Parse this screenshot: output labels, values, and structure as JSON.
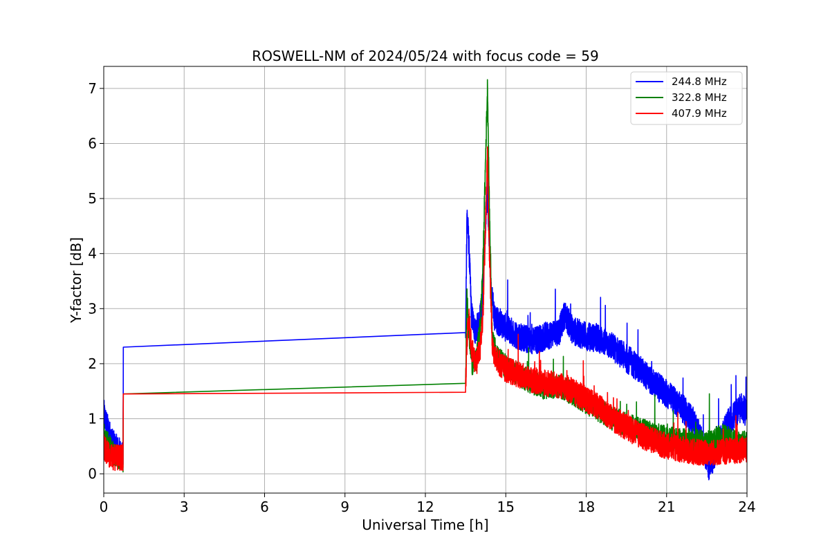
{
  "chart_data": {
    "type": "line",
    "title": "ROSWELL-NM of 2024/05/24 with focus code = 59",
    "xlabel": "Universal Time [h]",
    "ylabel": "Y-factor [dB]",
    "xlim": [
      0,
      24
    ],
    "ylim": [
      -0.35,
      7.4
    ],
    "xticks": [
      0,
      3,
      6,
      9,
      12,
      15,
      18,
      21,
      24
    ],
    "yticks": [
      0,
      1,
      2,
      3,
      4,
      5,
      6,
      7
    ],
    "grid": true,
    "legend_position": "top-right",
    "series": [
      {
        "name": "244.8 MHz",
        "color": "#0000ff",
        "points": [
          [
            0,
            1.1
          ],
          [
            0.1,
            0.9
          ],
          [
            0.2,
            0.75
          ],
          [
            0.3,
            0.6
          ],
          [
            0.4,
            0.5
          ],
          [
            0.5,
            0.45
          ],
          [
            0.6,
            0.4
          ],
          [
            0.72,
            0.3
          ],
          [
            0.73,
            2.3
          ],
          [
            13.5,
            2.4
          ],
          [
            13.55,
            4.75
          ],
          [
            13.62,
            4.2
          ],
          [
            13.72,
            2.9
          ],
          [
            13.85,
            2.6
          ],
          [
            14.0,
            2.7
          ],
          [
            14.1,
            3.0
          ],
          [
            14.2,
            4.0
          ],
          [
            14.3,
            5.2
          ],
          [
            14.36,
            4.6
          ],
          [
            14.45,
            3.3
          ],
          [
            14.6,
            2.8
          ],
          [
            14.8,
            2.75
          ],
          [
            15.0,
            2.65
          ],
          [
            15.5,
            2.5
          ],
          [
            16.0,
            2.4
          ],
          [
            16.5,
            2.5
          ],
          [
            17.0,
            2.6
          ],
          [
            17.2,
            2.9
          ],
          [
            17.5,
            2.6
          ],
          [
            18.0,
            2.5
          ],
          [
            18.5,
            2.45
          ],
          [
            19.0,
            2.3
          ],
          [
            19.5,
            2.1
          ],
          [
            20.0,
            1.9
          ],
          [
            20.5,
            1.65
          ],
          [
            21.0,
            1.45
          ],
          [
            21.5,
            1.25
          ],
          [
            22.0,
            0.95
          ],
          [
            22.3,
            0.6
          ],
          [
            22.6,
            0.1
          ],
          [
            22.9,
            0.5
          ],
          [
            23.2,
            0.85
          ],
          [
            23.5,
            1.05
          ],
          [
            23.8,
            1.2
          ],
          [
            24.0,
            1.1
          ]
        ],
        "noise": 0.26
      },
      {
        "name": "322.8 MHz",
        "color": "#008000",
        "points": [
          [
            0,
            0.7
          ],
          [
            0.2,
            0.5
          ],
          [
            0.4,
            0.35
          ],
          [
            0.72,
            0.25
          ],
          [
            0.73,
            1.45
          ],
          [
            13.5,
            1.5
          ],
          [
            13.55,
            3.3
          ],
          [
            13.62,
            2.6
          ],
          [
            13.75,
            2.0
          ],
          [
            13.9,
            2.05
          ],
          [
            14.05,
            2.7
          ],
          [
            14.15,
            3.8
          ],
          [
            14.25,
            5.8
          ],
          [
            14.32,
            7.05
          ],
          [
            14.38,
            5.0
          ],
          [
            14.5,
            2.4
          ],
          [
            14.7,
            2.1
          ],
          [
            15.0,
            1.95
          ],
          [
            15.5,
            1.8
          ],
          [
            16.0,
            1.65
          ],
          [
            16.5,
            1.55
          ],
          [
            17.0,
            1.6
          ],
          [
            17.5,
            1.45
          ],
          [
            18.0,
            1.3
          ],
          [
            18.5,
            1.15
          ],
          [
            19.0,
            1.0
          ],
          [
            19.5,
            0.9
          ],
          [
            20.0,
            0.8
          ],
          [
            20.5,
            0.72
          ],
          [
            21.0,
            0.65
          ],
          [
            21.5,
            0.6
          ],
          [
            22.0,
            0.62
          ],
          [
            22.5,
            0.55
          ],
          [
            23.0,
            0.7
          ],
          [
            23.5,
            0.6
          ],
          [
            24.0,
            0.55
          ]
        ],
        "noise": 0.22
      },
      {
        "name": "407.9 MHz",
        "color": "#ff0000",
        "points": [
          [
            0,
            0.5
          ],
          [
            0.2,
            0.35
          ],
          [
            0.4,
            0.3
          ],
          [
            0.72,
            0.3
          ],
          [
            0.73,
            1.45
          ],
          [
            13.5,
            1.5
          ],
          [
            13.55,
            2.4
          ],
          [
            13.62,
            2.8
          ],
          [
            13.75,
            2.2
          ],
          [
            13.9,
            2.0
          ],
          [
            14.05,
            2.3
          ],
          [
            14.15,
            2.9
          ],
          [
            14.25,
            4.6
          ],
          [
            14.32,
            5.8
          ],
          [
            14.38,
            4.2
          ],
          [
            14.5,
            2.3
          ],
          [
            14.7,
            2.05
          ],
          [
            15.0,
            1.9
          ],
          [
            15.5,
            1.8
          ],
          [
            16.0,
            1.7
          ],
          [
            16.5,
            1.65
          ],
          [
            17.0,
            1.6
          ],
          [
            17.5,
            1.5
          ],
          [
            18.0,
            1.35
          ],
          [
            18.5,
            1.2
          ],
          [
            19.0,
            1.0
          ],
          [
            19.5,
            0.85
          ],
          [
            20.0,
            0.7
          ],
          [
            20.5,
            0.6
          ],
          [
            21.0,
            0.5
          ],
          [
            21.5,
            0.45
          ],
          [
            22.0,
            0.4
          ],
          [
            22.5,
            0.38
          ],
          [
            23.0,
            0.4
          ],
          [
            23.5,
            0.42
          ],
          [
            24.0,
            0.45
          ]
        ],
        "noise": 0.24
      }
    ]
  }
}
